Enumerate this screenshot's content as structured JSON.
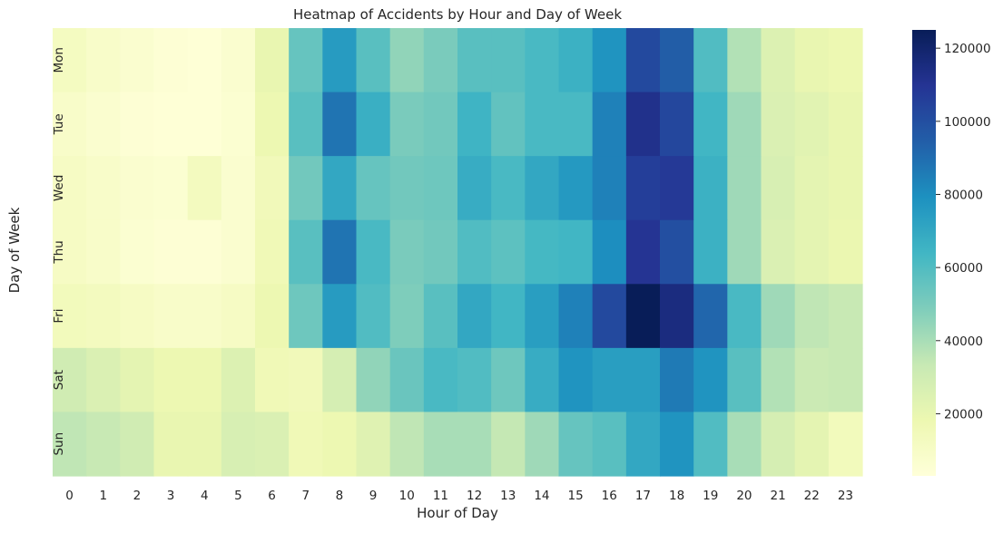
{
  "chart_data": {
    "type": "heatmap",
    "title": "Heatmap of Accidents by Hour and Day of Week",
    "xlabel": "Hour of Day",
    "ylabel": "Day of Week",
    "x_categories": [
      "0",
      "1",
      "2",
      "3",
      "4",
      "5",
      "6",
      "7",
      "8",
      "9",
      "10",
      "11",
      "12",
      "13",
      "14",
      "15",
      "16",
      "17",
      "18",
      "19",
      "20",
      "21",
      "22",
      "23"
    ],
    "y_categories": [
      "Mon",
      "Tue",
      "Wed",
      "Thu",
      "Fri",
      "Sat",
      "Sun"
    ],
    "values": [
      [
        12000,
        9000,
        7000,
        5000,
        4000,
        7000,
        20000,
        55000,
        75000,
        58000,
        45000,
        50000,
        58000,
        58000,
        62000,
        66000,
        78000,
        102000,
        95000,
        60000,
        38000,
        25000,
        20000,
        18000
      ],
      [
        9000,
        7000,
        5000,
        4000,
        4000,
        6000,
        18000,
        58000,
        88000,
        67000,
        50000,
        52000,
        65000,
        56000,
        62000,
        62000,
        84000,
        112000,
        103000,
        64000,
        42000,
        26000,
        23000,
        20000
      ],
      [
        11000,
        9000,
        7000,
        6000,
        13000,
        7000,
        15000,
        52000,
        70000,
        55000,
        52000,
        53000,
        68000,
        62000,
        70000,
        76000,
        84000,
        106000,
        108000,
        66000,
        42000,
        27000,
        22000,
        20000
      ],
      [
        11000,
        9000,
        6000,
        5000,
        5000,
        7000,
        16000,
        58000,
        88000,
        62000,
        50000,
        52000,
        60000,
        57000,
        63000,
        64000,
        80000,
        110000,
        100000,
        66000,
        42000,
        26000,
        22000,
        19000
      ],
      [
        14000,
        13000,
        11000,
        9000,
        9000,
        11000,
        18000,
        53000,
        75000,
        60000,
        49000,
        58000,
        70000,
        64000,
        74000,
        84000,
        102000,
        125000,
        115000,
        92000,
        62000,
        42000,
        35000,
        33000
      ],
      [
        30000,
        26000,
        22000,
        18000,
        18000,
        25000,
        16000,
        15000,
        28000,
        45000,
        54000,
        62000,
        60000,
        53000,
        68000,
        78000,
        74000,
        74000,
        86000,
        78000,
        58000,
        38000,
        32000,
        33000
      ],
      [
        35000,
        33000,
        30000,
        20000,
        20000,
        27000,
        26000,
        16000,
        18000,
        24000,
        35000,
        40000,
        40000,
        34000,
        42000,
        55000,
        58000,
        70000,
        78000,
        60000,
        40000,
        28000,
        22000,
        14000
      ]
    ],
    "colorbar": {
      "ticks": [
        20000,
        40000,
        60000,
        80000,
        100000,
        120000
      ],
      "tick_labels": [
        "20000",
        "40000",
        "60000",
        "80000",
        "100000",
        "120000"
      ],
      "vmin": 3000,
      "vmax": 125000
    },
    "colormap": "YlGnBu",
    "grid": false,
    "legend": "colorbar-right"
  }
}
